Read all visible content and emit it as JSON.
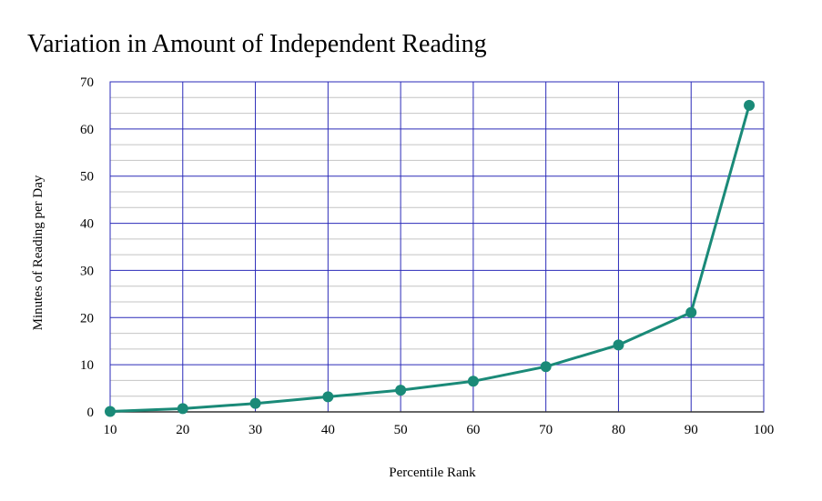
{
  "chart_data": {
    "type": "line",
    "title": "Variation in Amount of Independent Reading",
    "xlabel": "Percentile Rank",
    "ylabel": "Minutes of Reading per Day",
    "xlim": [
      10,
      100
    ],
    "ylim": [
      0,
      70
    ],
    "x_ticks": [
      10,
      20,
      30,
      40,
      50,
      60,
      70,
      80,
      90,
      100
    ],
    "y_ticks": [
      0,
      10,
      20,
      30,
      40,
      50,
      60,
      70
    ],
    "y_minor_step": 3.33,
    "grid": true,
    "legend": "none",
    "colors": {
      "line": "#1a8a78",
      "major_grid": "#2a2ab8",
      "minor_grid": "#c4c4c4",
      "frame": "#2a2ab8",
      "axis": "#333333"
    },
    "series": [
      {
        "x": [
          10,
          20,
          30,
          40,
          50,
          60,
          70,
          80,
          90,
          98
        ],
        "values": [
          0.1,
          0.7,
          1.8,
          3.2,
          4.6,
          6.5,
          9.6,
          14.2,
          21.1,
          65.0
        ]
      }
    ]
  }
}
